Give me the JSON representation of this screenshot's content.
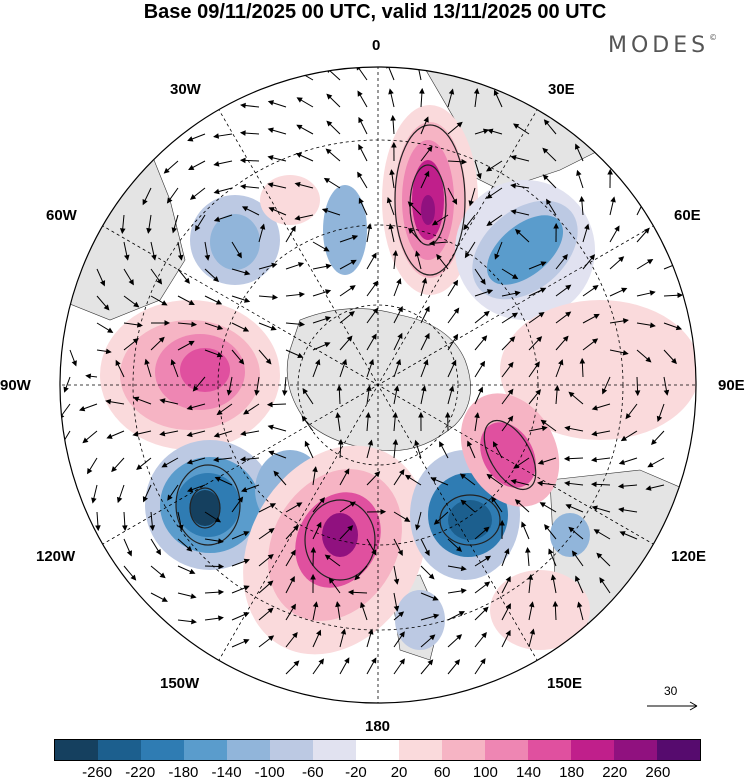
{
  "title": "Base 09/11/2025 00 UTC, valid 13/11/2025 00 UTC",
  "logo": "MODES",
  "logo_mark": "©",
  "longitude_labels": {
    "top": "0",
    "upper_right": "30E",
    "upper_left": "30W",
    "right_upper": "60E",
    "left_upper": "60W",
    "right": "90E",
    "left": "90W",
    "right_lower": "120E",
    "left_lower": "120W",
    "lower_right": "150E",
    "lower_left": "150W",
    "bottom": "180"
  },
  "vector_scale": "30",
  "colorbar": {
    "colors": [
      "#15405f",
      "#1c5f8e",
      "#2f7cb3",
      "#5a9ccc",
      "#91b5da",
      "#bcc9e3",
      "#e1e2f0",
      "#ffffff",
      "#fadadc",
      "#f6b4c4",
      "#ee86b3",
      "#e0509f",
      "#c01f8b",
      "#90117f",
      "#560b6e"
    ],
    "labels": [
      "-260",
      "-220",
      "-180",
      "-140",
      "-100",
      "-60",
      "-20",
      "20",
      "60",
      "100",
      "140",
      "180",
      "220",
      "260"
    ]
  }
}
